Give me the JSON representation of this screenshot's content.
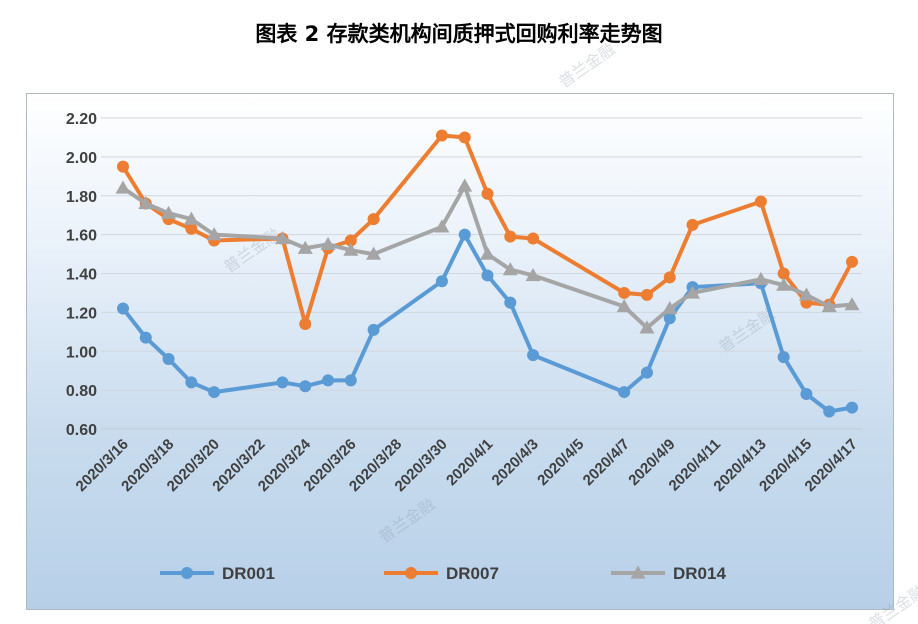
{
  "title": "图表 2  存款类机构间质押式回购利率走势图",
  "watermark": "普兰金融",
  "colors": {
    "DR001": "#5b9bd5",
    "DR007": "#ed7d31",
    "DR014": "#a5a5a5"
  },
  "chart_data": {
    "type": "line",
    "title": "图表 2  存款类机构间质押式回购利率走势图",
    "ylim": [
      0.6,
      2.2
    ],
    "yticks": [
      "0.60",
      "0.80",
      "1.00",
      "1.20",
      "1.40",
      "1.60",
      "1.80",
      "2.00",
      "2.20"
    ],
    "xticks": [
      "2020/3/16",
      "2020/3/18",
      "2020/3/20",
      "2020/3/22",
      "2020/3/24",
      "2020/3/26",
      "2020/3/28",
      "2020/3/30",
      "2020/4/1",
      "2020/4/3",
      "2020/4/5",
      "2020/4/7",
      "2020/4/9",
      "2020/4/11",
      "2020/4/13",
      "2020/4/15",
      "2020/4/17"
    ],
    "x_start": "2020/3/16",
    "x_end": "2020/4/17",
    "legend_position": "bottom",
    "grid": "horizontal",
    "series": [
      {
        "name": "DR001",
        "marker": "circle",
        "points": [
          [
            "2020/3/16",
            1.22
          ],
          [
            "2020/3/17",
            1.07
          ],
          [
            "2020/3/18",
            0.96
          ],
          [
            "2020/3/19",
            0.84
          ],
          [
            "2020/3/20",
            0.79
          ],
          [
            "2020/3/23",
            0.84
          ],
          [
            "2020/3/24",
            0.82
          ],
          [
            "2020/3/25",
            0.85
          ],
          [
            "2020/3/26",
            0.85
          ],
          [
            "2020/3/27",
            1.11
          ],
          [
            "2020/3/30",
            1.36
          ],
          [
            "2020/3/31",
            1.6
          ],
          [
            "2020/4/1",
            1.39
          ],
          [
            "2020/4/2",
            1.25
          ],
          [
            "2020/4/3",
            0.98
          ],
          [
            "2020/4/7",
            0.79
          ],
          [
            "2020/4/8",
            0.89
          ],
          [
            "2020/4/9",
            1.17
          ],
          [
            "2020/4/10",
            1.33
          ],
          [
            "2020/4/13",
            1.35
          ],
          [
            "2020/4/14",
            0.97
          ],
          [
            "2020/4/15",
            0.78
          ],
          [
            "2020/4/16",
            0.69
          ],
          [
            "2020/4/17",
            0.71
          ]
        ]
      },
      {
        "name": "DR007",
        "marker": "circle",
        "points": [
          [
            "2020/3/16",
            1.95
          ],
          [
            "2020/3/17",
            1.76
          ],
          [
            "2020/3/18",
            1.68
          ],
          [
            "2020/3/19",
            1.63
          ],
          [
            "2020/3/20",
            1.57
          ],
          [
            "2020/3/23",
            1.58
          ],
          [
            "2020/3/24",
            1.14
          ],
          [
            "2020/3/25",
            1.53
          ],
          [
            "2020/3/26",
            1.57
          ],
          [
            "2020/3/27",
            1.68
          ],
          [
            "2020/3/30",
            2.11
          ],
          [
            "2020/3/31",
            2.1
          ],
          [
            "2020/4/1",
            1.81
          ],
          [
            "2020/4/2",
            1.59
          ],
          [
            "2020/4/3",
            1.58
          ],
          [
            "2020/4/7",
            1.3
          ],
          [
            "2020/4/8",
            1.29
          ],
          [
            "2020/4/9",
            1.38
          ],
          [
            "2020/4/10",
            1.65
          ],
          [
            "2020/4/13",
            1.77
          ],
          [
            "2020/4/14",
            1.4
          ],
          [
            "2020/4/15",
            1.25
          ],
          [
            "2020/4/16",
            1.24
          ],
          [
            "2020/4/17",
            1.46
          ]
        ]
      },
      {
        "name": "DR014",
        "marker": "triangle",
        "points": [
          [
            "2020/3/16",
            1.84
          ],
          [
            "2020/3/17",
            1.76
          ],
          [
            "2020/3/18",
            1.71
          ],
          [
            "2020/3/19",
            1.68
          ],
          [
            "2020/3/20",
            1.6
          ],
          [
            "2020/3/23",
            1.58
          ],
          [
            "2020/3/24",
            1.53
          ],
          [
            "2020/3/25",
            1.55
          ],
          [
            "2020/3/26",
            1.52
          ],
          [
            "2020/3/27",
            1.5
          ],
          [
            "2020/3/30",
            1.64
          ],
          [
            "2020/3/31",
            1.85
          ],
          [
            "2020/4/1",
            1.5
          ],
          [
            "2020/4/2",
            1.42
          ],
          [
            "2020/4/3",
            1.39
          ],
          [
            "2020/4/7",
            1.23
          ],
          [
            "2020/4/8",
            1.12
          ],
          [
            "2020/4/9",
            1.22
          ],
          [
            "2020/4/10",
            1.3
          ],
          [
            "2020/4/13",
            1.37
          ],
          [
            "2020/4/14",
            1.34
          ],
          [
            "2020/4/15",
            1.29
          ],
          [
            "2020/4/16",
            1.23
          ],
          [
            "2020/4/17",
            1.24
          ]
        ]
      }
    ]
  }
}
